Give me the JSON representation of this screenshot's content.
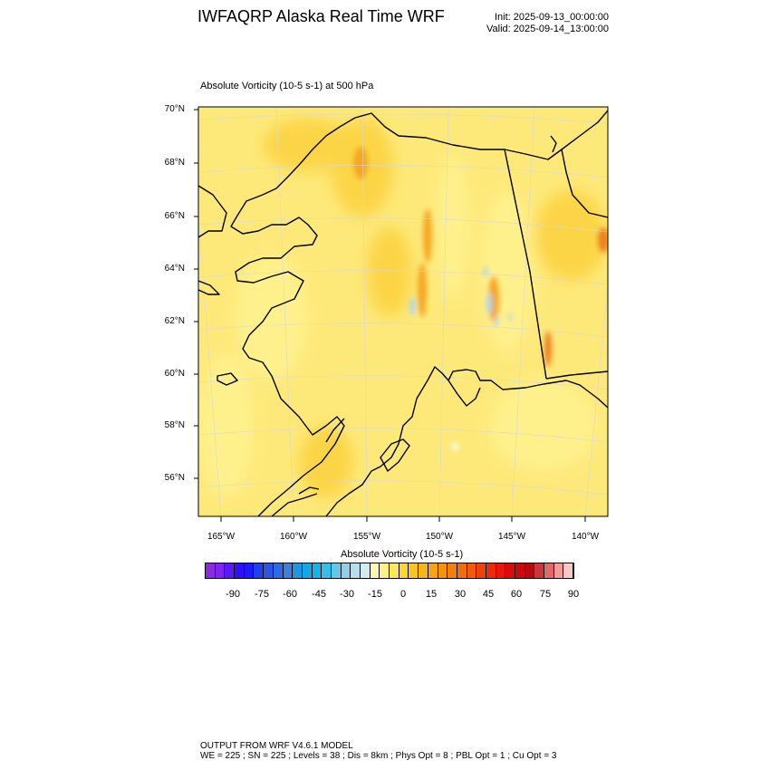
{
  "header": {
    "title": "IWFAQRP Alaska Real Time WRF",
    "init": "Init: 2025-09-13_00:00:00",
    "valid": "Valid: 2025-09-14_13:00:00"
  },
  "field": {
    "label": "Absolute Vorticity   (10-5 s-1)     at   500 hPa"
  },
  "map": {
    "lat_labels": [
      "70°N",
      "68°N",
      "66°N",
      "64°N",
      "62°N",
      "60°N",
      "58°N",
      "56°N"
    ],
    "lon_labels": [
      "165°W",
      "160°W",
      "155°W",
      "150°W",
      "145°W",
      "140°W"
    ],
    "colors": {
      "base": "#fde97a",
      "light": "#fff28f",
      "mid": "#fcd23c",
      "orange": "#f5a623",
      "dark_orange": "#ee7f1b",
      "blue_patch": "#a9d6f0"
    }
  },
  "colorbar": {
    "title": "Absolute Vorticity  (10-5 s-1)",
    "ticks": [
      "-90",
      "-75",
      "-60",
      "-45",
      "-30",
      "-15",
      "0",
      "15",
      "30",
      "45",
      "60",
      "75",
      "90"
    ],
    "colors": [
      "#8a2be2",
      "#7b27f0",
      "#5a1af8",
      "#2f10fa",
      "#1c1cf5",
      "#2040ec",
      "#2a55e5",
      "#2f6be0",
      "#3a80dd",
      "#1f96e0",
      "#10a8e6",
      "#10b7e6",
      "#35c0ea",
      "#62c8ea",
      "#8fd0ea",
      "#b6dfec",
      "#d4ebf0",
      "#fff6b0",
      "#fff08a",
      "#fde85a",
      "#fbd82e",
      "#fac51e",
      "#f8b517",
      "#f6a314",
      "#f59212",
      "#f37f10",
      "#f26d0f",
      "#f0590e",
      "#ee420d",
      "#ec2a0c",
      "#e8160c",
      "#dc0b0b",
      "#c9090b",
      "#b30a14",
      "#c8373c",
      "#e06a6a",
      "#f29b9b",
      "#fbc6c6"
    ]
  },
  "footer": {
    "line1": "OUTPUT FROM WRF V4.6.1 MODEL",
    "line2": "WE = 225 ; SN = 225 ; Levels = 38 ; Dis = 8km ; Phys Opt = 8 ; PBL Opt = 1 ; Cu Opt = 3"
  }
}
